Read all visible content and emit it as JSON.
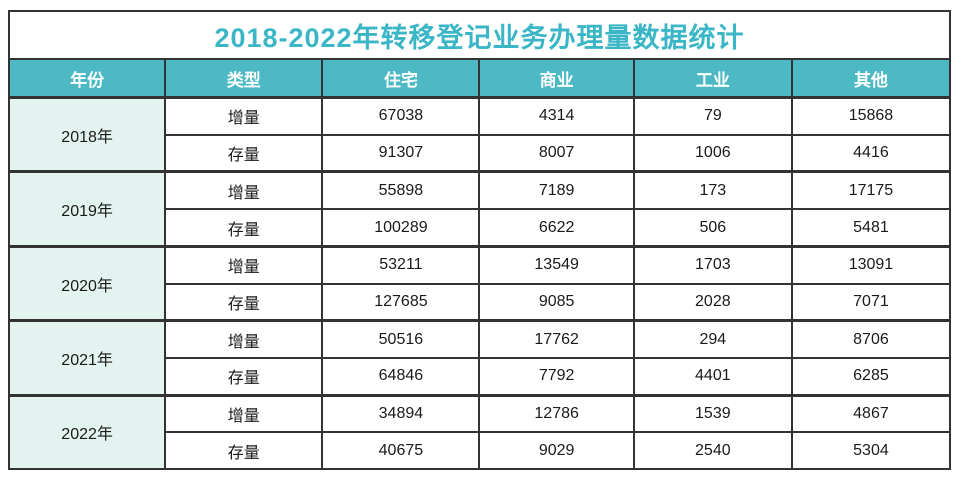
{
  "title": "2018-2022年转移登记业务办理量数据统计",
  "colors": {
    "accent_teal": "#4cb9c4",
    "title_text_teal": "#3bb6c6",
    "year_cell_bg": "#e2f3f0",
    "border_dark": "#333333",
    "header_text": "#ffffff",
    "body_text": "#1a1a1a"
  },
  "chart_data": {
    "type": "table",
    "title": "2018-2022年转移登记业务办理量数据统计",
    "headers": [
      "年份",
      "类型",
      "住宅",
      "商业",
      "工业",
      "其他"
    ],
    "groups": [
      {
        "year": "2018年",
        "rows": [
          {
            "type": "增量",
            "values": [
              67038,
              4314,
              79,
              15868
            ]
          },
          {
            "type": "存量",
            "values": [
              91307,
              8007,
              1006,
              4416
            ]
          }
        ]
      },
      {
        "year": "2019年",
        "rows": [
          {
            "type": "增量",
            "values": [
              55898,
              7189,
              173,
              17175
            ]
          },
          {
            "type": "存量",
            "values": [
              100289,
              6622,
              506,
              5481
            ]
          }
        ]
      },
      {
        "year": "2020年",
        "rows": [
          {
            "type": "增量",
            "values": [
              53211,
              13549,
              1703,
              13091
            ]
          },
          {
            "type": "存量",
            "values": [
              127685,
              9085,
              2028,
              7071
            ]
          }
        ]
      },
      {
        "year": "2021年",
        "rows": [
          {
            "type": "增量",
            "values": [
              50516,
              17762,
              294,
              8706
            ]
          },
          {
            "type": "存量",
            "values": [
              64846,
              7792,
              4401,
              6285
            ]
          }
        ]
      },
      {
        "year": "2022年",
        "rows": [
          {
            "type": "增量",
            "values": [
              34894,
              12786,
              1539,
              4867
            ]
          },
          {
            "type": "存量",
            "values": [
              40675,
              9029,
              2540,
              5304
            ]
          }
        ]
      }
    ]
  }
}
